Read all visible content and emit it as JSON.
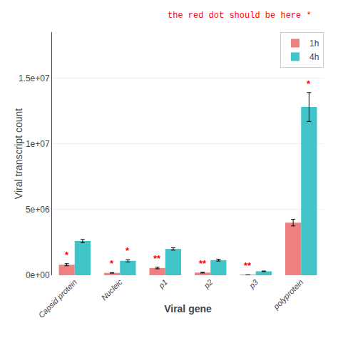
{
  "chart_data": {
    "type": "bar",
    "categories": [
      "Capsid protein",
      "Nucleic",
      "p1",
      "p2",
      "p3",
      "polyprotein"
    ],
    "series": [
      {
        "name": "1h",
        "color": "#F08080",
        "values": [
          800000,
          180000,
          550000,
          200000,
          25000,
          4000000
        ],
        "errors": [
          80000,
          20000,
          60000,
          30000,
          8000,
          250000
        ]
      },
      {
        "name": "4h",
        "color": "#40C4C8",
        "values": [
          2600000,
          1100000,
          2000000,
          1150000,
          300000,
          12800000
        ],
        "errors": [
          120000,
          90000,
          90000,
          70000,
          25000,
          1100000
        ]
      }
    ],
    "xlabel": "Viral gene",
    "ylabel": "Viral transcript count",
    "ylim": [
      0,
      18500000
    ],
    "yticks": [
      {
        "value": 0,
        "label": "0e+00"
      },
      {
        "value": 5000000,
        "label": "5e+06"
      },
      {
        "value": 10000000,
        "label": "1e+07"
      },
      {
        "value": 15000000,
        "label": "1.5e+07"
      }
    ],
    "grid": true,
    "legend": "upper right",
    "annotations": [
      {
        "text": "the red dot should be here *",
        "color": "#FF0000"
      },
      {
        "text": "*",
        "series": "1h",
        "category": "Capsid protein",
        "color": "#FF0000"
      },
      {
        "text": "*",
        "series": "1h",
        "category": "Nucleic",
        "color": "#FF0000"
      },
      {
        "text": "**",
        "series": "1h",
        "category": "p1",
        "color": "#FF0000"
      },
      {
        "text": "**",
        "series": "1h",
        "category": "p2",
        "color": "#FF0000"
      },
      {
        "text": "**",
        "series": "1h",
        "category": "p3",
        "color": "#FF0000"
      },
      {
        "text": "*",
        "series": "4h",
        "category": "Nucleic",
        "color": "#FF0000"
      },
      {
        "text": "*",
        "series": "4h",
        "category": "polyprotein",
        "color": "#FF0000"
      }
    ]
  }
}
